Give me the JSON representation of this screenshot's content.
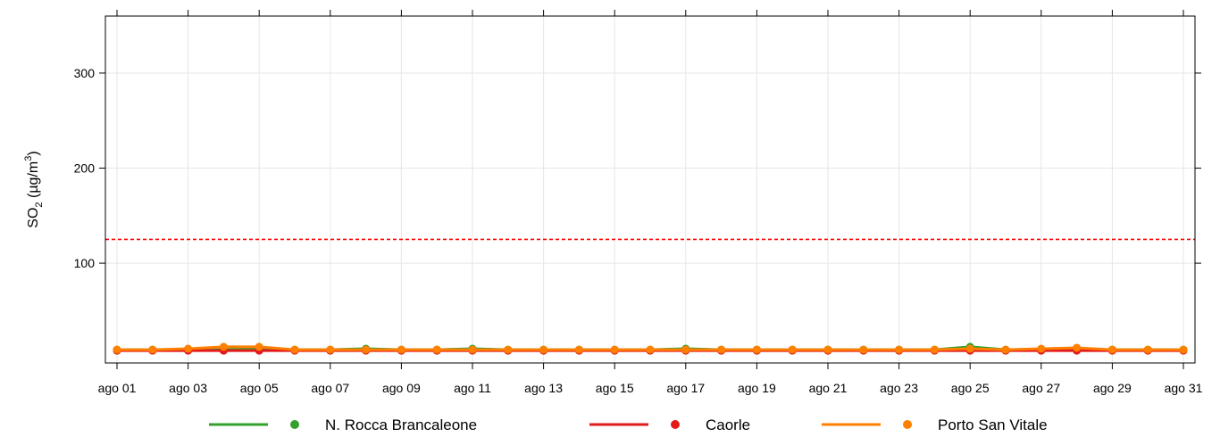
{
  "chart_data": {
    "type": "line",
    "ylabel_main": "SO",
    "ylabel_sub": "2",
    "ylabel_unit_pre": " (µg/m",
    "ylabel_unit_sup": "3",
    "ylabel_unit_post": ")",
    "ylim": [
      -5,
      360
    ],
    "yticks": [
      100,
      200,
      300
    ],
    "grid": true,
    "legend_position": "bottom",
    "x_days": [
      1,
      2,
      3,
      4,
      5,
      6,
      7,
      8,
      9,
      10,
      11,
      12,
      13,
      14,
      15,
      16,
      17,
      18,
      19,
      20,
      21,
      22,
      23,
      24,
      25,
      26,
      27,
      28,
      29,
      30,
      31
    ],
    "x_tick_days": [
      1,
      3,
      5,
      7,
      9,
      11,
      13,
      15,
      17,
      19,
      21,
      23,
      25,
      27,
      29,
      31
    ],
    "x_tick_labels": [
      "ago 01",
      "ago 03",
      "ago 05",
      "ago 07",
      "ago 09",
      "ago 11",
      "ago 13",
      "ago 15",
      "ago 17",
      "ago 19",
      "ago 21",
      "ago 23",
      "ago 25",
      "ago 27",
      "ago 29",
      "ago 31"
    ],
    "threshold": {
      "value": 125,
      "color": "#ff0000"
    },
    "series": [
      {
        "name": "N. Rocca Brancaleone",
        "color": "#33a02c",
        "values": [
          9,
          9,
          9,
          9,
          10,
          9,
          9,
          10,
          9,
          9,
          10,
          9,
          9,
          9,
          9,
          9,
          10,
          9,
          9,
          9,
          9,
          9,
          9,
          9,
          12,
          9,
          9,
          9,
          9,
          9,
          9
        ]
      },
      {
        "name": "Caorle",
        "color": "#e31a1c",
        "values": [
          8,
          8,
          8,
          8,
          8,
          8,
          8,
          8,
          8,
          8,
          8,
          8,
          8,
          8,
          8,
          8,
          8,
          8,
          8,
          8,
          8,
          8,
          8,
          8,
          8,
          8,
          8,
          8,
          8,
          8,
          8
        ]
      },
      {
        "name": "Porto San Vitale",
        "color": "#ff7f00",
        "values": [
          9,
          9,
          10,
          12,
          12,
          9,
          9,
          9,
          9,
          9,
          9,
          9,
          9,
          9,
          9,
          9,
          9,
          9,
          9,
          9,
          9,
          9,
          9,
          9,
          10,
          9,
          10,
          11,
          9,
          9,
          9
        ]
      }
    ]
  }
}
